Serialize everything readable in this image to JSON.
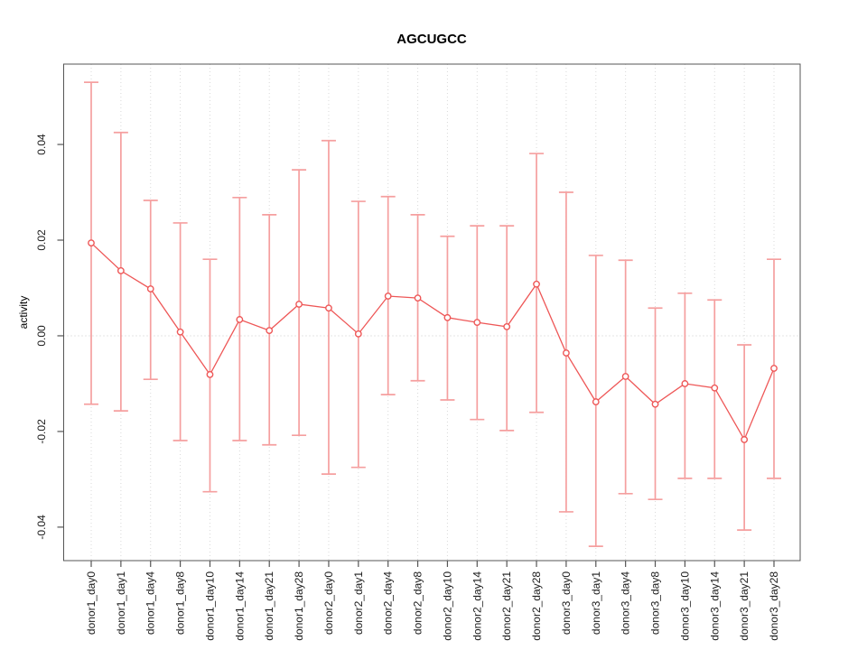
{
  "chart_data": {
    "type": "line",
    "subtype": "points-with-error-bars",
    "title": "AGCUGCC",
    "xlabel": "",
    "ylabel": "activity",
    "legend_position": "none",
    "grid": "dotted vertical gridline per category, dotted horizontal line at y=0",
    "yticks": [
      -0.04,
      -0.02,
      0.0,
      0.02,
      0.04
    ],
    "ylim": [
      -0.047,
      0.0568
    ],
    "categories": [
      "donor1_day0",
      "donor1_day1",
      "donor1_day4",
      "donor1_day8",
      "donor1_day10",
      "donor1_day14",
      "donor1_day21",
      "donor1_day28",
      "donor2_day0",
      "donor2_day1",
      "donor2_day4",
      "donor2_day8",
      "donor2_day10",
      "donor2_day14",
      "donor2_day21",
      "donor2_day28",
      "donor3_day0",
      "donor3_day1",
      "donor3_day4",
      "donor3_day8",
      "donor3_day10",
      "donor3_day14",
      "donor3_day21",
      "donor3_day28"
    ],
    "series": [
      {
        "name": "activity",
        "values": [
          0.0194,
          0.0136,
          0.0098,
          0.0008,
          -0.0081,
          0.0034,
          0.0011,
          0.0066,
          0.0058,
          0.0004,
          0.0083,
          0.0079,
          0.0038,
          0.0028,
          0.0019,
          0.0108,
          -0.0036,
          -0.0138,
          -0.0085,
          -0.0143,
          -0.01,
          -0.0109,
          -0.0217,
          -0.0068
        ],
        "upper": [
          0.053,
          0.0425,
          0.0283,
          0.0236,
          0.016,
          0.0289,
          0.0253,
          0.0347,
          0.0408,
          0.0281,
          0.0291,
          0.0253,
          0.0208,
          0.023,
          0.023,
          0.0381,
          0.03,
          0.0168,
          0.0158,
          0.0058,
          0.0089,
          0.0075,
          -0.0019,
          0.016
        ],
        "lower": [
          -0.0143,
          -0.0157,
          -0.0091,
          -0.0219,
          -0.0326,
          -0.0219,
          -0.0228,
          -0.0208,
          -0.0289,
          -0.0275,
          -0.0123,
          -0.0094,
          -0.0134,
          -0.0175,
          -0.0198,
          -0.016,
          -0.0368,
          -0.044,
          -0.033,
          -0.0342,
          -0.0298,
          -0.0298,
          -0.0406,
          -0.0298
        ]
      }
    ],
    "colors": {
      "point": "#ee5757",
      "line": "#ee5757",
      "error_bar": "#f59f9f",
      "grid": "#d9d9d9",
      "zero_line": "#cccccc",
      "axis": "#555555",
      "text": "#000000"
    }
  }
}
